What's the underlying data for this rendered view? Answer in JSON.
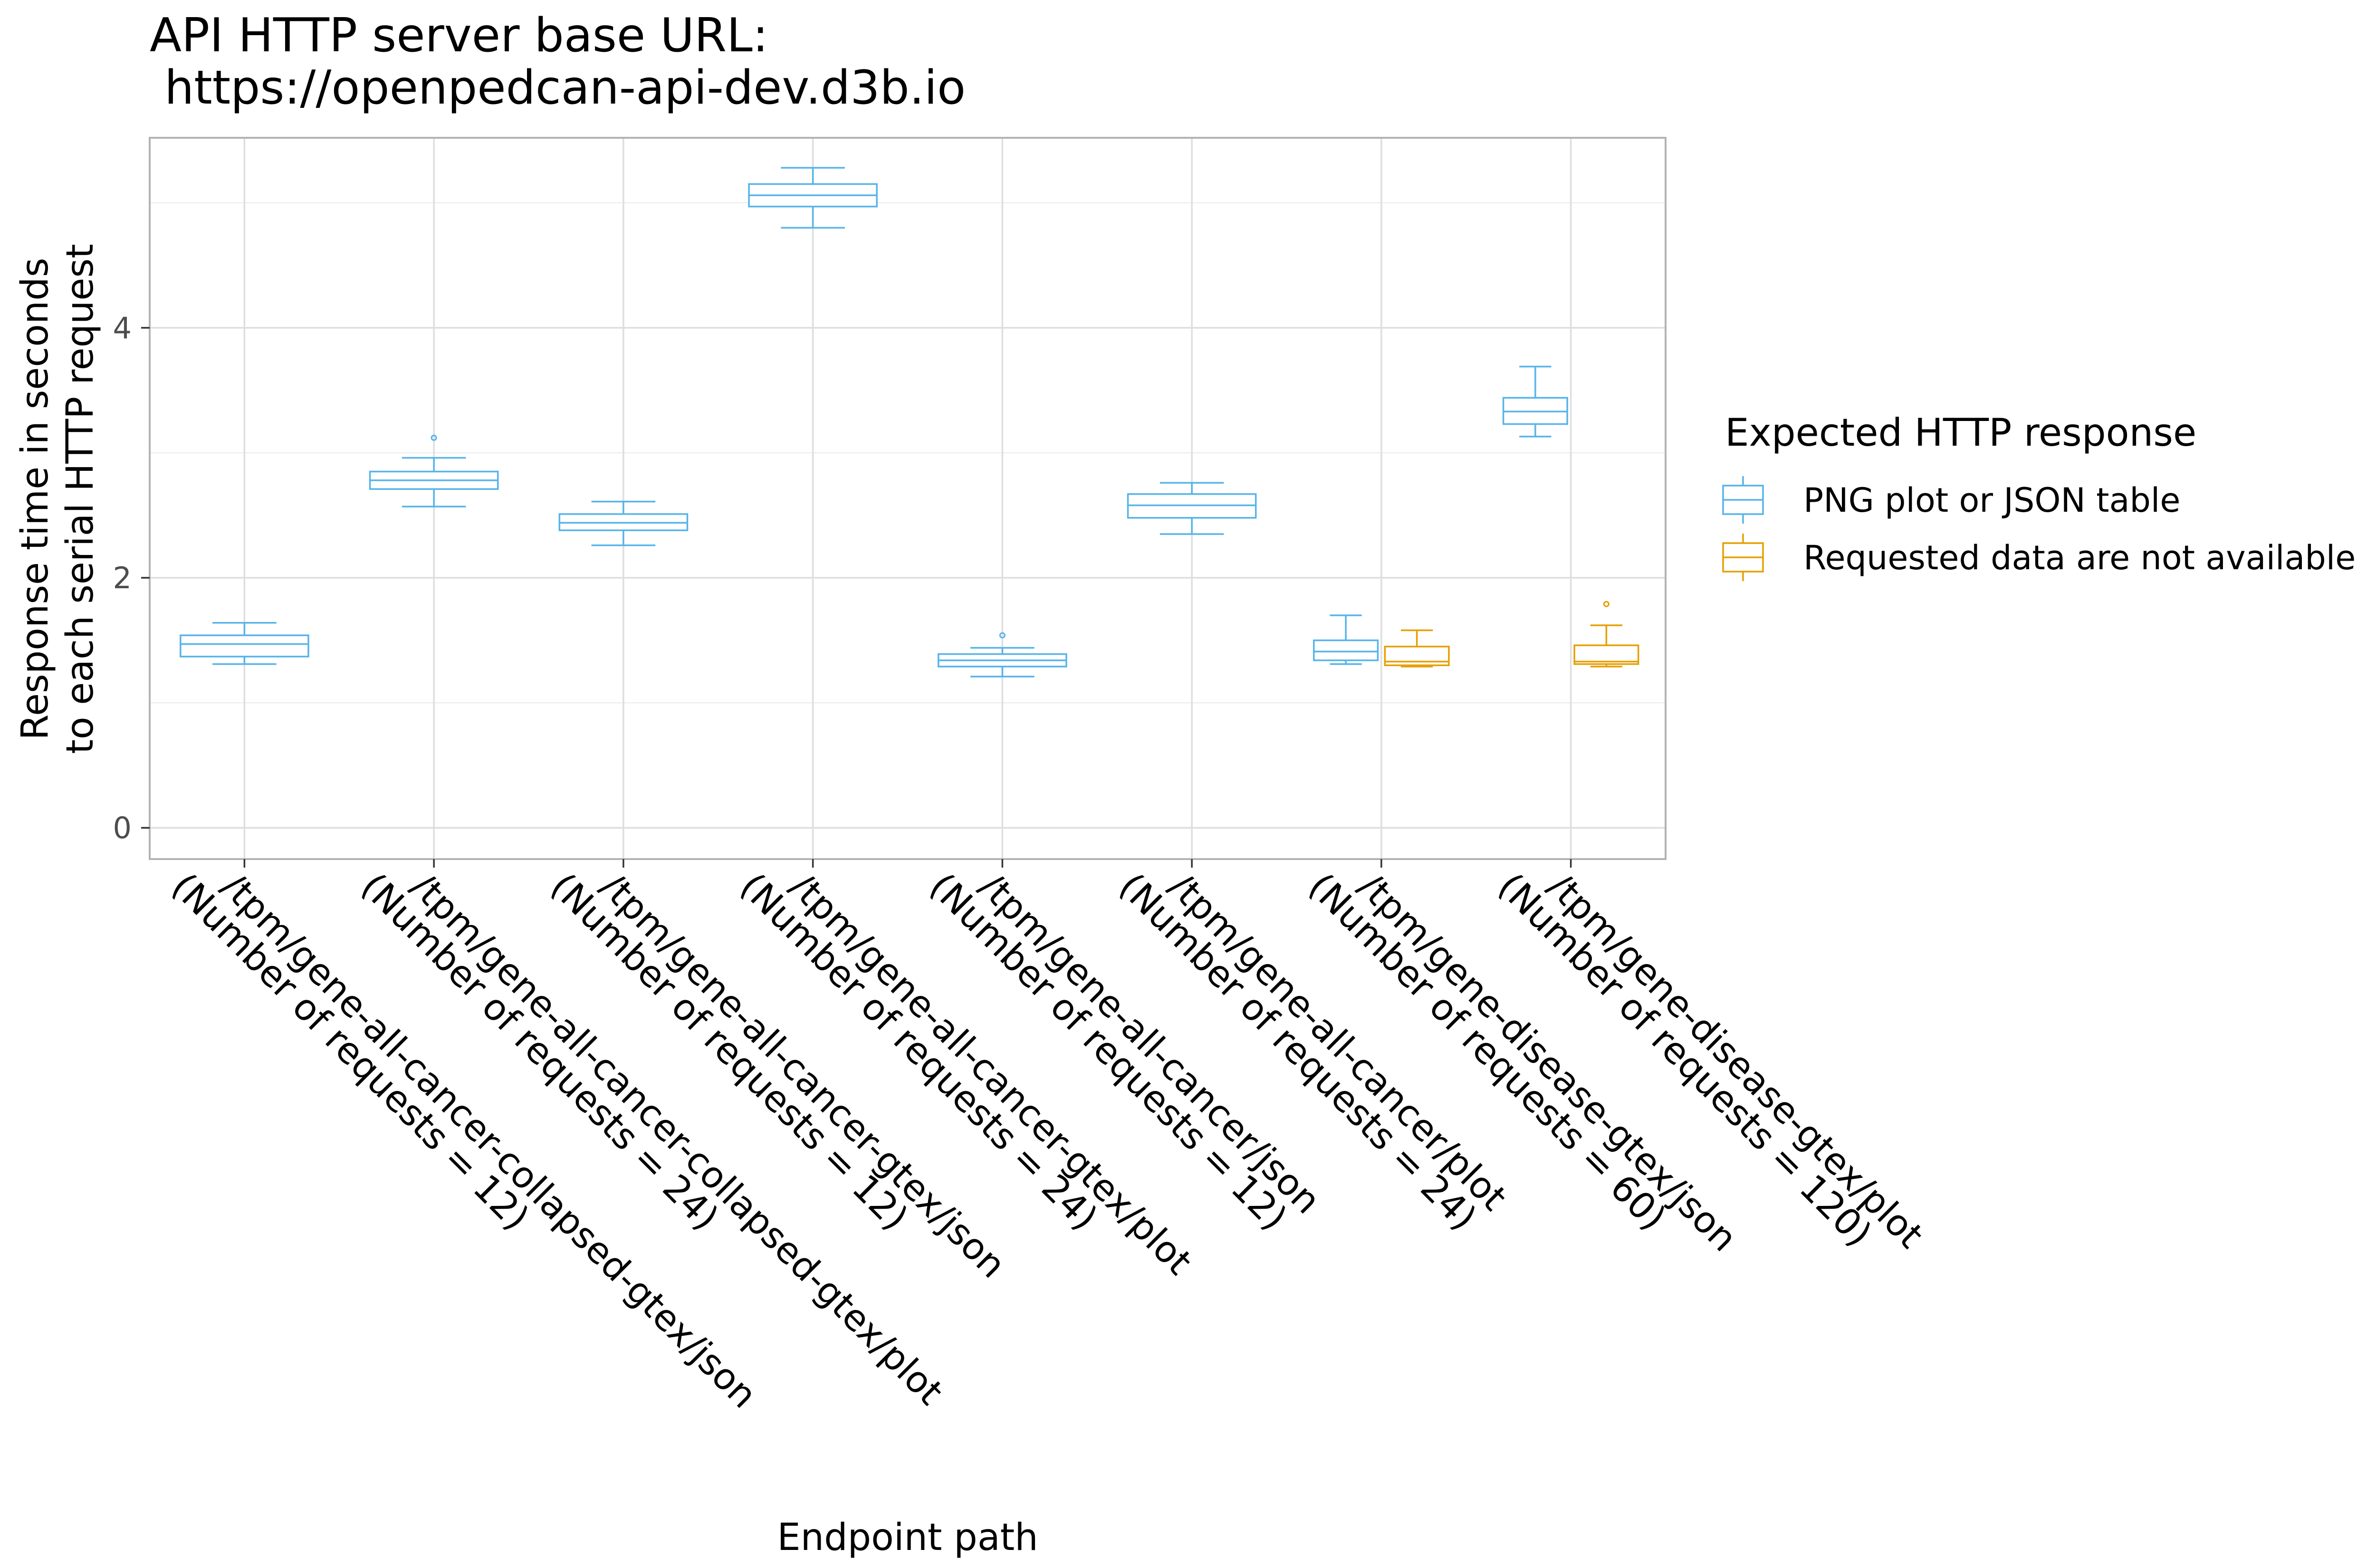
{
  "chart_data": {
    "type": "box",
    "title_lines": [
      "API HTTP server base URL:",
      " https://openpedcan-api-dev.d3b.io"
    ],
    "xlabel": "Endpoint path",
    "ylabel_lines": [
      "Response time in seconds",
      "to each serial HTTP request"
    ],
    "ylim": [
      -0.25,
      5.52
    ],
    "yticks": [
      0,
      2,
      4
    ],
    "grid": true,
    "legend": {
      "title": "Expected HTTP response",
      "placement": "right"
    },
    "categories": [
      [
        "/tpm/gene-all-cancer-collapsed-gtex/json",
        "(Number of requests = 12)"
      ],
      [
        "/tpm/gene-all-cancer-collapsed-gtex/plot",
        "(Number of requests = 24)"
      ],
      [
        "/tpm/gene-all-cancer-gtex/json",
        "(Number of requests = 12)"
      ],
      [
        "/tpm/gene-all-cancer-gtex/plot",
        "(Number of requests = 24)"
      ],
      [
        "/tpm/gene-all-cancer/json",
        "(Number of requests = 12)"
      ],
      [
        "/tpm/gene-all-cancer/plot",
        "(Number of requests = 24)"
      ],
      [
        "/tpm/gene-disease-gtex/json",
        "(Number of requests = 60)"
      ],
      [
        "/tpm/gene-disease-gtex/plot",
        "(Number of requests = 120)"
      ]
    ],
    "series": [
      {
        "name": "PNG plot or JSON table",
        "color": "#56B4E9",
        "boxes": [
          {
            "cat": 0,
            "min": 1.31,
            "q1": 1.37,
            "median": 1.47,
            "q3": 1.54,
            "max": 1.64,
            "outliers": []
          },
          {
            "cat": 1,
            "min": 2.57,
            "q1": 2.71,
            "median": 2.78,
            "q3": 2.85,
            "max": 2.96,
            "outliers": [
              3.12
            ]
          },
          {
            "cat": 2,
            "min": 2.26,
            "q1": 2.38,
            "median": 2.44,
            "q3": 2.51,
            "max": 2.61,
            "outliers": []
          },
          {
            "cat": 3,
            "min": 4.8,
            "q1": 4.97,
            "median": 5.06,
            "q3": 5.15,
            "max": 5.28,
            "outliers": []
          },
          {
            "cat": 4,
            "min": 1.21,
            "q1": 1.29,
            "median": 1.34,
            "q3": 1.39,
            "max": 1.44,
            "outliers": [
              1.54
            ]
          },
          {
            "cat": 5,
            "min": 2.35,
            "q1": 2.48,
            "median": 2.58,
            "q3": 2.67,
            "max": 2.76,
            "outliers": []
          },
          {
            "cat": 6,
            "min": 1.31,
            "q1": 1.34,
            "median": 1.41,
            "q3": 1.5,
            "max": 1.7,
            "outliers": []
          },
          {
            "cat": 7,
            "min": 3.13,
            "q1": 3.23,
            "median": 3.33,
            "q3": 3.44,
            "max": 3.69,
            "outliers": []
          }
        ]
      },
      {
        "name": "Requested data are not available",
        "color": "#E69F00",
        "boxes": [
          {
            "cat": 6,
            "min": 1.29,
            "q1": 1.3,
            "median": 1.33,
            "q3": 1.45,
            "max": 1.58,
            "outliers": []
          },
          {
            "cat": 7,
            "min": 1.29,
            "q1": 1.31,
            "median": 1.33,
            "q3": 1.46,
            "max": 1.62,
            "outliers": [
              1.79
            ]
          }
        ]
      }
    ]
  }
}
